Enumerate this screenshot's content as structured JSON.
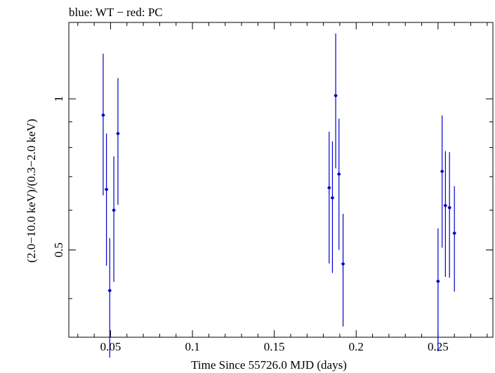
{
  "chart_data": {
    "type": "scatter",
    "title": "blue: WT − red: PC",
    "xlabel": "Time Since 55726.0 MJD (days)",
    "ylabel": "(2.0−10.0 keV)/(0.3−2.0 keV)",
    "x_scale": "linear",
    "y_scale": "log",
    "xlim": [
      0.0245,
      0.2835
    ],
    "ylim": [
      0.335,
      1.42
    ],
    "x_ticks": [
      0.05,
      0.1,
      0.15,
      0.2,
      0.25
    ],
    "x_tick_labels": [
      "0.05",
      "0.1",
      "0.15",
      "0.2",
      "0.25"
    ],
    "y_ticks": [
      0.5,
      1
    ],
    "y_tick_labels": [
      "0.5",
      "1"
    ],
    "grid": false,
    "series": [
      {
        "name": "WT",
        "color": "#0000cc",
        "points": [
          {
            "x": 0.0455,
            "y": 0.928,
            "ylo": 0.642,
            "yhi": 1.23
          },
          {
            "x": 0.0475,
            "y": 0.66,
            "ylo": 0.465,
            "yhi": 0.853
          },
          {
            "x": 0.0495,
            "y": 0.415,
            "ylo": 0.305,
            "yhi": 0.528
          },
          {
            "x": 0.052,
            "y": 0.6,
            "ylo": 0.432,
            "yhi": 0.768
          },
          {
            "x": 0.0545,
            "y": 0.853,
            "ylo": 0.615,
            "yhi": 1.1
          },
          {
            "x": 0.1835,
            "y": 0.665,
            "ylo": 0.47,
            "yhi": 0.86
          },
          {
            "x": 0.1855,
            "y": 0.635,
            "ylo": 0.45,
            "yhi": 0.823
          },
          {
            "x": 0.1875,
            "y": 1.015,
            "ylo": 0.727,
            "yhi": 1.35
          },
          {
            "x": 0.1895,
            "y": 0.708,
            "ylo": 0.5,
            "yhi": 0.913
          },
          {
            "x": 0.192,
            "y": 0.469,
            "ylo": 0.352,
            "yhi": 0.59
          },
          {
            "x": 0.25,
            "y": 0.433,
            "ylo": 0.314,
            "yhi": 0.552
          },
          {
            "x": 0.2525,
            "y": 0.717,
            "ylo": 0.505,
            "yhi": 0.927
          },
          {
            "x": 0.2545,
            "y": 0.613,
            "ylo": 0.442,
            "yhi": 0.787
          },
          {
            "x": 0.257,
            "y": 0.607,
            "ylo": 0.44,
            "yhi": 0.783
          },
          {
            "x": 0.26,
            "y": 0.54,
            "ylo": 0.413,
            "yhi": 0.67
          }
        ]
      }
    ]
  }
}
